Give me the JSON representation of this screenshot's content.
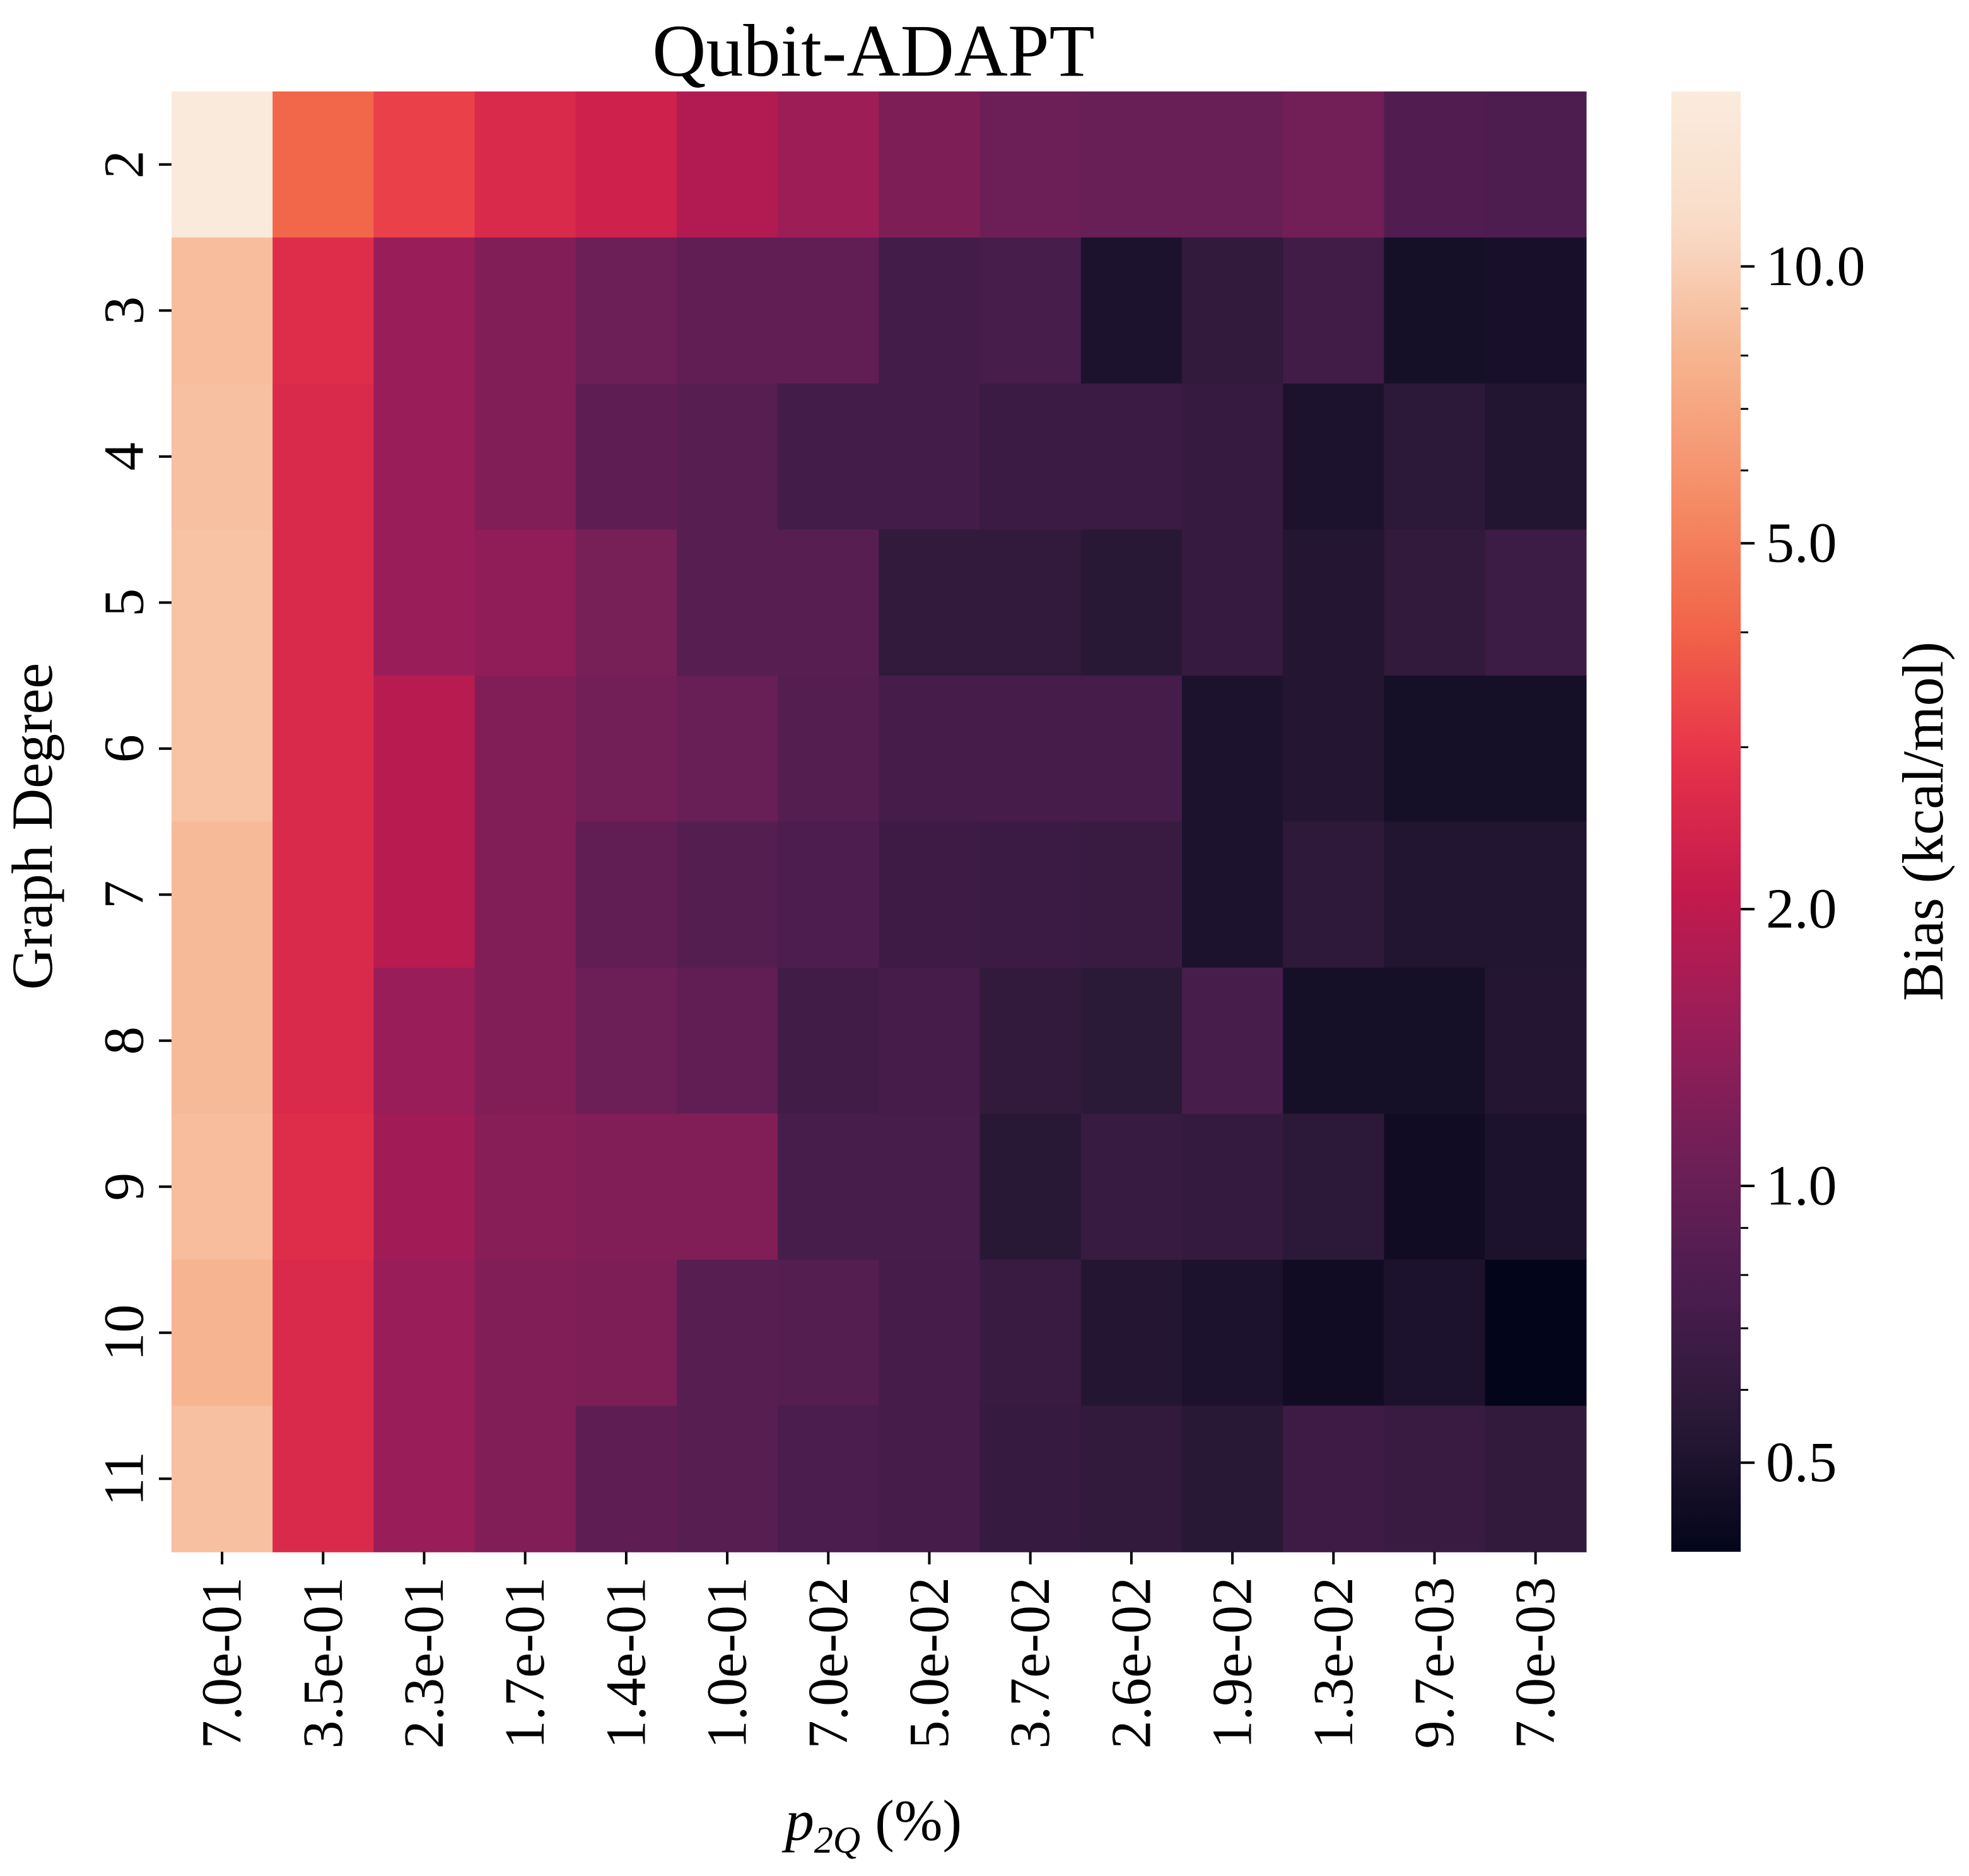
{
  "chart_data": {
    "type": "heatmap",
    "title": "Qubit-ADAPT",
    "xlabel": {
      "base": "p",
      "subscript": "2Q",
      "suffix": " (%)"
    },
    "ylabel": "Graph Degree",
    "x_categories": [
      "7.0e-01",
      "3.5e-01",
      "2.3e-01",
      "1.7e-01",
      "1.4e-01",
      "1.0e-01",
      "7.0e-02",
      "5.0e-02",
      "3.7e-02",
      "2.6e-02",
      "1.9e-02",
      "1.3e-02",
      "9.7e-03",
      "7.0e-03"
    ],
    "y_categories": [
      "2",
      "3",
      "4",
      "5",
      "6",
      "7",
      "8",
      "9",
      "10",
      "11"
    ],
    "values": [
      [
        15.2,
        4.1,
        3.2,
        2.6,
        2.3,
        1.8,
        1.55,
        1.2,
        1.05,
        1.0,
        1.0,
        1.1,
        0.82,
        0.8
      ],
      [
        8.6,
        2.7,
        1.5,
        1.25,
        1.05,
        0.95,
        0.95,
        0.72,
        0.75,
        0.5,
        0.6,
        0.7,
        0.47,
        0.48
      ],
      [
        8.8,
        2.6,
        1.5,
        1.25,
        0.93,
        0.87,
        0.72,
        0.72,
        0.66,
        0.66,
        0.63,
        0.5,
        0.57,
        0.52
      ],
      [
        9.0,
        2.6,
        1.5,
        1.4,
        1.15,
        0.87,
        0.87,
        0.6,
        0.6,
        0.55,
        0.63,
        0.53,
        0.6,
        0.67
      ],
      [
        9.0,
        2.6,
        1.9,
        1.25,
        1.1,
        1.0,
        0.85,
        0.73,
        0.73,
        0.73,
        0.5,
        0.53,
        0.47,
        0.47
      ],
      [
        8.4,
        2.6,
        1.9,
        1.25,
        0.95,
        0.85,
        0.8,
        0.68,
        0.66,
        0.65,
        0.5,
        0.58,
        0.52,
        0.52
      ],
      [
        8.4,
        2.6,
        1.5,
        1.25,
        1.05,
        0.95,
        0.7,
        0.73,
        0.6,
        0.56,
        0.75,
        0.47,
        0.47,
        0.53
      ],
      [
        8.6,
        2.7,
        1.6,
        1.3,
        1.25,
        1.25,
        0.75,
        0.75,
        0.55,
        0.64,
        0.62,
        0.57,
        0.45,
        0.5
      ],
      [
        8.0,
        2.6,
        1.5,
        1.25,
        1.2,
        0.87,
        0.85,
        0.73,
        0.65,
        0.53,
        0.5,
        0.45,
        0.5,
        0.4
      ],
      [
        8.8,
        2.6,
        1.5,
        1.25,
        0.93,
        0.87,
        0.78,
        0.73,
        0.63,
        0.6,
        0.55,
        0.68,
        0.65,
        0.6
      ]
    ],
    "colorbar": {
      "label": "Bias (kcal/mol)",
      "scale": "log",
      "range": [
        0.4,
        15.5
      ],
      "ticks": [
        0.5,
        1.0,
        2.0,
        5.0,
        10.0
      ],
      "tick_labels": [
        "0.5",
        "1.0",
        "2.0",
        "5.0",
        "10.0"
      ],
      "minor_ticks": [
        0.6,
        0.7,
        0.8,
        0.9,
        3,
        4,
        6,
        7,
        8,
        9
      ],
      "colormap": "rocket",
      "color_stops": [
        "#03051a",
        "#2a1937",
        "#4b1d4f",
        "#701f57",
        "#9a1d58",
        "#c51a4c",
        "#e7334a",
        "#f26649",
        "#f58f69",
        "#f6b48f",
        "#f9dcc8",
        "#faebdd"
      ]
    },
    "legend": "none",
    "grid": false
  }
}
